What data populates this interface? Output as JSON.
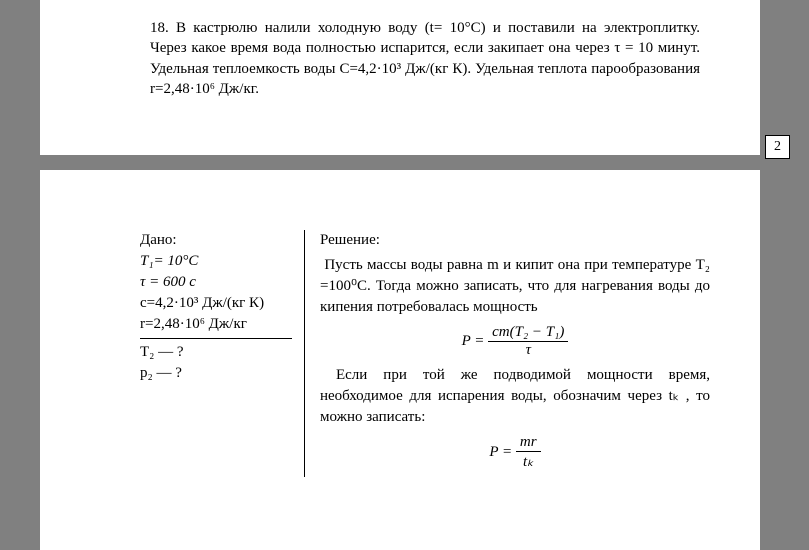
{
  "problem": {
    "number": "18.",
    "text": "В кастрюлю налили холодную воду (t= 10°С) и поставили на электроплитку. Через какое время вода полностью испарится, если закипает она через τ = 10 минут. Удельная теплоемкость воды С=4,2·10³ Дж/(кг К). Удельная теплота парообразования r=2,48·10⁶ Дж/кг."
  },
  "page_number": "2",
  "given": {
    "title": "Дано:",
    "lines": [
      "T₁= 10°С",
      "τ = 600 с",
      "с=4,2·10³ Дж/(кг К)",
      "r=2,48·10⁶ Дж/кг"
    ],
    "find": [
      "T₂ — ?",
      "р₂ — ?"
    ]
  },
  "solution": {
    "title": "Решение:",
    "para1": "Пусть массы воды равна m и кипит она при температуре T₂ =100⁰С. Тогда можно записать, что для нагревания воды до кипения потребовалась мощность",
    "formula1_left": "P =",
    "formula1_num": "cm(T₂ − T₁)",
    "formula1_den": "τ",
    "para2": "Если при той же подводимой мощности время, необходимое для испарения воды, обозначим через tₖ , то можно записать:",
    "formula2_left": "P =",
    "formula2_num": "mr",
    "formula2_den": "tₖ"
  },
  "colors": {
    "page_bg": "#ffffff",
    "outer_bg": "#808080",
    "text": "#000000"
  }
}
